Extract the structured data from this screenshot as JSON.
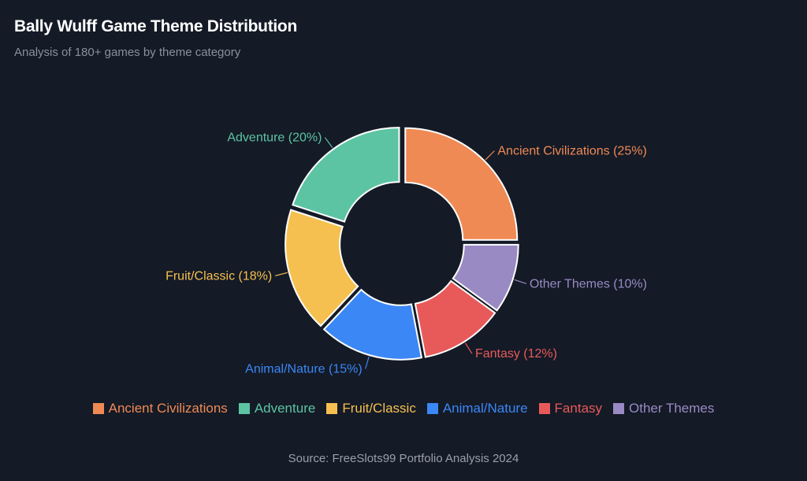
{
  "header": {
    "title": "Bally Wulff Game Theme Distribution",
    "subtitle": "Analysis of 180+ games by theme category"
  },
  "footer": {
    "source": "Source: FreeSlots99 Portfolio Analysis 2024"
  },
  "chart_data": {
    "type": "pie",
    "variant": "donut",
    "title": "Bally Wulff Game Theme Distribution",
    "subtitle": "Analysis of 180+ games by theme category",
    "legend_position": "bottom",
    "slices": [
      {
        "name": "Ancient Civilizations",
        "value": 25,
        "label": "Ancient Civilizations (25%)",
        "color": "#ef8a55"
      },
      {
        "name": "Other Themes",
        "value": 10,
        "label": "Other Themes (10%)",
        "color": "#9a8ac4"
      },
      {
        "name": "Fantasy",
        "value": 12,
        "label": "Fantasy (12%)",
        "color": "#e85a5a"
      },
      {
        "name": "Animal/Nature",
        "value": 15,
        "label": "Animal/Nature (15%)",
        "color": "#3b87f5"
      },
      {
        "name": "Fruit/Classic",
        "value": 18,
        "label": "Fruit/Classic (18%)",
        "color": "#f5c04f"
      },
      {
        "name": "Adventure",
        "value": 20,
        "label": "Adventure (20%)",
        "color": "#5cc4a3"
      }
    ],
    "legend": [
      {
        "name": "Ancient Civilizations",
        "color": "#ef8a55"
      },
      {
        "name": "Adventure",
        "color": "#5cc4a3"
      },
      {
        "name": "Fruit/Classic",
        "color": "#f5c04f"
      },
      {
        "name": "Animal/Nature",
        "color": "#3b87f5"
      },
      {
        "name": "Fantasy",
        "color": "#e85a5a"
      },
      {
        "name": "Other Themes",
        "color": "#9a8ac4"
      }
    ]
  }
}
